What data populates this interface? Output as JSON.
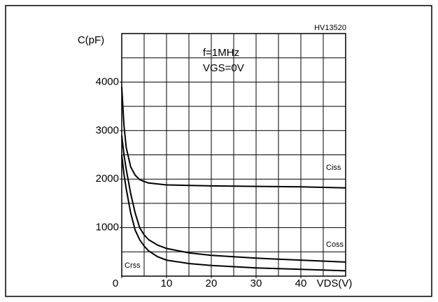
{
  "chart_data": {
    "type": "line",
    "y_label": "C(pF)",
    "x_label": "VDS(V)",
    "code": "HV13520",
    "annotations": [
      "f=1MHz",
      "VGS=0V"
    ],
    "x": [
      0,
      0.5,
      1,
      2,
      3,
      4,
      5,
      6,
      8,
      10,
      15,
      20,
      30,
      40,
      50
    ],
    "series": [
      {
        "name": "Ciss",
        "color": "#000000",
        "values": [
          3900,
          3100,
          2650,
          2250,
          2080,
          1990,
          1950,
          1920,
          1900,
          1880,
          1870,
          1860,
          1850,
          1840,
          1820
        ]
      },
      {
        "name": "Coss",
        "color": "#000000",
        "values": [
          2900,
          2500,
          2200,
          1700,
          1300,
          1000,
          850,
          750,
          640,
          570,
          480,
          430,
          370,
          330,
          290
        ]
      },
      {
        "name": "Crss",
        "color": "#000000",
        "values": [
          2500,
          2100,
          1800,
          1300,
          950,
          750,
          620,
          520,
          400,
          330,
          260,
          220,
          170,
          140,
          110
        ]
      }
    ],
    "xlim": [
      0,
      50
    ],
    "ylim": [
      0,
      5000
    ],
    "xticks": [
      0,
      10,
      20,
      30,
      40
    ],
    "yticks": [
      1000,
      2000,
      3000,
      4000
    ],
    "xgrid": [
      5,
      10,
      15,
      20,
      25,
      30,
      35,
      40,
      45
    ],
    "ygrid": [
      500,
      1000,
      1500,
      2000,
      2500,
      3000,
      3500,
      4000,
      4500
    ],
    "grid": true
  }
}
